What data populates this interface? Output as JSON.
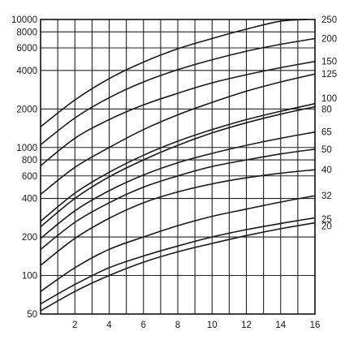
{
  "chart_data": {
    "type": "line",
    "title": "",
    "xlabel": "",
    "ylabel": "",
    "xlim": [
      0,
      16
    ],
    "ylim": [
      50,
      10000
    ],
    "y_scale": "log",
    "grid": true,
    "x_ticks": [
      {
        "value": 2,
        "label": "2"
      },
      {
        "value": 4,
        "label": "4"
      },
      {
        "value": 6,
        "label": "6"
      },
      {
        "value": 8,
        "label": "8"
      },
      {
        "value": 10,
        "label": "10"
      },
      {
        "value": 12,
        "label": "12"
      },
      {
        "value": 14,
        "label": "14"
      },
      {
        "value": 16,
        "label": "16"
      }
    ],
    "x_gridlines": [
      1,
      2,
      3,
      4,
      5,
      6,
      7,
      8,
      9,
      10,
      11,
      12,
      13,
      14,
      15
    ],
    "y_ticks": [
      {
        "value": 50,
        "label": "50"
      },
      {
        "value": 100,
        "label": "100"
      },
      {
        "value": 200,
        "label": "200"
      },
      {
        "value": 400,
        "label": "400"
      },
      {
        "value": 600,
        "label": "600"
      },
      {
        "value": 800,
        "label": "800"
      },
      {
        "value": 1000,
        "label": "1000"
      },
      {
        "value": 2000,
        "label": "2000"
      },
      {
        "value": 4000,
        "label": "4000"
      },
      {
        "value": 6000,
        "label": "6000"
      },
      {
        "value": 8000,
        "label": "8000"
      },
      {
        "value": 10000,
        "label": "10000"
      }
    ],
    "y_gridlines": [
      50,
      100,
      200,
      400,
      600,
      800,
      1000,
      2000,
      4000,
      6000,
      8000,
      10000
    ],
    "series": [
      {
        "name": "250",
        "x": [
          0,
          2,
          4,
          6,
          8,
          10,
          12,
          14,
          15.6
        ],
        "y": [
          1450,
          2350,
          3450,
          4650,
          5900,
          7100,
          8400,
          9700,
          10000
        ]
      },
      {
        "name": "200",
        "x": [
          0,
          2,
          4,
          6,
          8,
          10,
          12,
          14,
          16
        ],
        "y": [
          1050,
          1700,
          2450,
          3250,
          4050,
          4850,
          5650,
          6400,
          7100
        ]
      },
      {
        "name": "150",
        "x": [
          0,
          2,
          4,
          6,
          8,
          10,
          12,
          14,
          16
        ],
        "y": [
          720,
          1180,
          1650,
          2150,
          2650,
          3200,
          3700,
          4200,
          4700
        ]
      },
      {
        "name": "125",
        "x": [
          0,
          2,
          4,
          6,
          8,
          10,
          12,
          14,
          16
        ],
        "y": [
          430,
          700,
          1000,
          1380,
          1800,
          2250,
          2750,
          3250,
          3750
        ]
      },
      {
        "name": "100",
        "x": [
          0,
          2,
          4,
          6,
          8,
          10,
          12,
          14,
          16
        ],
        "y": [
          265,
          440,
          640,
          870,
          1120,
          1380,
          1650,
          1920,
          2200
        ]
      },
      {
        "name": "80",
        "x": [
          0,
          2,
          4,
          6,
          8,
          10,
          12,
          14,
          16
        ],
        "y": [
          240,
          400,
          590,
          800,
          1040,
          1300,
          1560,
          1820,
          2080
        ]
      },
      {
        "name": "65",
        "x": [
          0,
          2,
          4,
          6,
          8,
          10,
          12,
          14,
          16
        ],
        "y": [
          195,
          320,
          460,
          610,
          760,
          900,
          1040,
          1180,
          1320
        ]
      },
      {
        "name": "50",
        "x": [
          0,
          2,
          4,
          6,
          8,
          10,
          12,
          14,
          16
        ],
        "y": [
          160,
          260,
          370,
          490,
          600,
          710,
          800,
          890,
          970
        ]
      },
      {
        "name": "40",
        "x": [
          0,
          2,
          4,
          6,
          8,
          10,
          12,
          14,
          16
        ],
        "y": [
          120,
          195,
          280,
          370,
          450,
          520,
          580,
          630,
          670
        ]
      },
      {
        "name": "32",
        "x": [
          0,
          2,
          4,
          6,
          8,
          10,
          12,
          14,
          16
        ],
        "y": [
          75,
          115,
          160,
          200,
          245,
          290,
          330,
          375,
          420
        ]
      },
      {
        "name": "25",
        "x": [
          0,
          2,
          4,
          6,
          8,
          10,
          12,
          14,
          16
        ],
        "y": [
          60,
          85,
          115,
          142,
          170,
          200,
          228,
          255,
          282
        ]
      },
      {
        "name": "20",
        "x": [
          0,
          2,
          4,
          6,
          8,
          10,
          12,
          14,
          16
        ],
        "y": [
          53,
          75,
          100,
          127,
          153,
          178,
          205,
          232,
          258
        ]
      }
    ],
    "curve_labels": [
      {
        "series": "250",
        "label": "250",
        "y": 10000
      },
      {
        "series": "200",
        "label": "200",
        "y": 7100
      },
      {
        "series": "150",
        "label": "150",
        "y": 4700
      },
      {
        "series": "125",
        "label": "125",
        "y": 3750
      },
      {
        "series": "100",
        "label": "100",
        "y": 2420
      },
      {
        "series": "80",
        "label": "80",
        "y": 2000
      },
      {
        "series": "65",
        "label": "65",
        "y": 1320
      },
      {
        "series": "50",
        "label": "50",
        "y": 970
      },
      {
        "series": "40",
        "label": "40",
        "y": 670
      },
      {
        "series": "32",
        "label": "32",
        "y": 420
      },
      {
        "series": "25",
        "label": "25",
        "y": 275
      },
      {
        "series": "20",
        "label": "20",
        "y": 243
      }
    ]
  }
}
